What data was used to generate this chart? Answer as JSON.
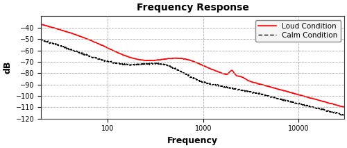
{
  "title": "Frequency Response",
  "xlabel": "Frequency",
  "ylabel": "dB",
  "xlim": [
    20,
    30000
  ],
  "ylim": [
    -120,
    -30
  ],
  "yticks": [
    -120,
    -110,
    -100,
    -90,
    -80,
    -70,
    -60,
    -50,
    -40
  ],
  "xticks": [
    100,
    1000,
    10000
  ],
  "loud_label": "Loud Condition",
  "calm_label": "Calm Condition",
  "loud_color": "#ff0000",
  "calm_color": "#000000",
  "background_color": "#ffffff",
  "grid_color": "#aaaaaa",
  "title_fontsize": 10,
  "axis_label_fontsize": 9,
  "tick_fontsize": 7,
  "legend_fontsize": 7.5
}
